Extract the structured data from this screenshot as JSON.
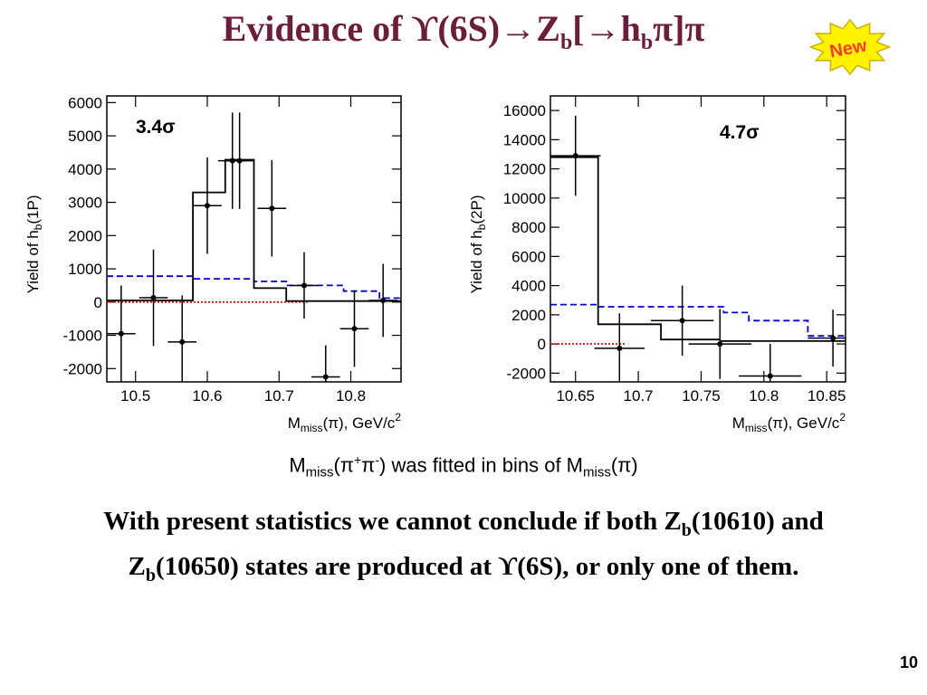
{
  "title": {
    "prefix": "Evidence of ϒ(6S)→Z",
    "sub1": "b",
    "mid": "[→h",
    "sub2": "b",
    "suffix": "π]π"
  },
  "badge": {
    "label": "New",
    "fill": "#fff200",
    "stroke": "#c8b400",
    "text_color": "#ff3b2f"
  },
  "colors": {
    "title": "#6b1e3c",
    "fit": "#000000",
    "background": "#0000cc",
    "zero": "#dd0000"
  },
  "chart_data": [
    {
      "type": "histogram",
      "significance": "3.4σ",
      "ylabel_text": "Yield of h",
      "ylabel_sub": "b",
      "ylabel_suffix": "(1P)",
      "xlabel_prefix": "M",
      "xlabel_sub": "miss",
      "xlabel_suffix": "(π), GeV/c",
      "xlabel_sup": "2",
      "xlim": [
        10.46,
        10.87
      ],
      "ylim": [
        -2400,
        6200
      ],
      "xticks": [
        10.5,
        10.6,
        10.7,
        10.8
      ],
      "xtick_labels": [
        "10.5",
        "10.6",
        "10.7",
        "10.8"
      ],
      "yticks": [
        -2000,
        -1000,
        0,
        1000,
        2000,
        3000,
        4000,
        5000,
        6000
      ],
      "ytick_labels": [
        "-2000",
        "-1000",
        "0",
        "1000",
        "2000",
        "3000",
        "4000",
        "5000",
        "6000"
      ],
      "points": [
        {
          "x": 10.48,
          "xerr": 0.02,
          "y": -950,
          "yerr": 1450
        },
        {
          "x": 10.525,
          "xerr": 0.02,
          "y": 130,
          "yerr": 1450
        },
        {
          "x": 10.565,
          "xerr": 0.02,
          "y": -1200,
          "yerr": 1400
        },
        {
          "x": 10.6,
          "xerr": 0.02,
          "y": 2900,
          "yerr": 1450
        },
        {
          "x": 10.635,
          "xerr": 0.02,
          "y": 4250,
          "yerr": 1450
        },
        {
          "x": 10.645,
          "xerr": 0.02,
          "y": 4250,
          "yerr": 1450
        },
        {
          "x": 10.69,
          "xerr": 0.02,
          "y": 2820,
          "yerr": 1450
        },
        {
          "x": 10.735,
          "xerr": 0.02,
          "y": 500,
          "yerr": 1000
        },
        {
          "x": 10.765,
          "xerr": 0.02,
          "y": -2250,
          "yerr": 950
        },
        {
          "x": 10.805,
          "xerr": 0.02,
          "y": -800,
          "yerr": 1150
        },
        {
          "x": 10.845,
          "xerr": 0.02,
          "y": 50,
          "yerr": 1100
        }
      ],
      "fit_steps": [
        {
          "x0": 10.46,
          "x1": 10.58,
          "y": 50
        },
        {
          "x0": 10.58,
          "x1": 10.625,
          "y": 3300
        },
        {
          "x0": 10.625,
          "x1": 10.665,
          "y": 4280
        },
        {
          "x0": 10.665,
          "x1": 10.71,
          "y": 420
        },
        {
          "x0": 10.71,
          "x1": 10.87,
          "y": 30
        }
      ],
      "background_steps": [
        {
          "x0": 10.46,
          "x1": 10.58,
          "y": 780
        },
        {
          "x0": 10.58,
          "x1": 10.665,
          "y": 700
        },
        {
          "x0": 10.665,
          "x1": 10.71,
          "y": 620
        },
        {
          "x0": 10.71,
          "x1": 10.79,
          "y": 500
        },
        {
          "x0": 10.79,
          "x1": 10.84,
          "y": 330
        },
        {
          "x0": 10.84,
          "x1": 10.87,
          "y": 120
        }
      ],
      "zero_line": {
        "x0": 10.46,
        "x1": 10.74
      }
    },
    {
      "type": "histogram",
      "significance": "4.7σ",
      "ylabel_text": "Yield of h",
      "ylabel_sub": "b",
      "ylabel_suffix": "(2P)",
      "xlabel_prefix": "M",
      "xlabel_sub": "miss",
      "xlabel_suffix": "(π), GeV/c",
      "xlabel_sup": "2",
      "xlim": [
        10.63,
        10.865
      ],
      "ylim": [
        -2600,
        17000
      ],
      "xticks": [
        10.65,
        10.7,
        10.75,
        10.8,
        10.85
      ],
      "xtick_labels": [
        "10.65",
        "10.7",
        "10.75",
        "10.8",
        "10.85"
      ],
      "yticks": [
        -2000,
        0,
        2000,
        4000,
        6000,
        8000,
        10000,
        12000,
        14000,
        16000
      ],
      "ytick_labels": [
        "-2000",
        "0",
        "2000",
        "4000",
        "6000",
        "8000",
        "10000",
        "12000",
        "14000",
        "16000"
      ],
      "points": [
        {
          "x": 10.65,
          "xerr": 0.02,
          "y": 12900,
          "yerr": 2750
        },
        {
          "x": 10.685,
          "xerr": 0.02,
          "y": -300,
          "yerr": 2400
        },
        {
          "x": 10.735,
          "xerr": 0.025,
          "y": 1600,
          "yerr": 2400
        },
        {
          "x": 10.765,
          "xerr": 0.025,
          "y": 0,
          "yerr": 2400
        },
        {
          "x": 10.805,
          "xerr": 0.025,
          "y": -2200,
          "yerr": 2200
        },
        {
          "x": 10.855,
          "xerr": 0.02,
          "y": 400,
          "yerr": 1950
        }
      ],
      "fit_steps": [
        {
          "x0": 10.63,
          "x1": 10.668,
          "y": 12800
        },
        {
          "x0": 10.668,
          "x1": 10.718,
          "y": 1350
        },
        {
          "x0": 10.718,
          "x1": 10.765,
          "y": 300
        },
        {
          "x0": 10.765,
          "x1": 10.865,
          "y": 200
        }
      ],
      "background_steps": [
        {
          "x0": 10.63,
          "x1": 10.668,
          "y": 2700
        },
        {
          "x0": 10.668,
          "x1": 10.768,
          "y": 2550
        },
        {
          "x0": 10.768,
          "x1": 10.788,
          "y": 2150
        },
        {
          "x0": 10.788,
          "x1": 10.835,
          "y": 1600
        },
        {
          "x0": 10.835,
          "x1": 10.865,
          "y": 550
        }
      ],
      "zero_line": {
        "x0": 10.63,
        "x1": 10.69
      }
    }
  ],
  "caption": {
    "m1": "M",
    "sub1": "miss",
    "p1": "(π",
    "sup1": "+",
    "p2": "π",
    "sup2": "-",
    "p3": ") was fitted in bins of M",
    "sub2": "miss",
    "p4": "(π)"
  },
  "conclusion": {
    "line1_a": "With present statistics we cannot conclude if both Z",
    "line1_sub": "b",
    "line1_b": "(10610) and",
    "line2_a": "Z",
    "line2_sub": "b",
    "line2_b": "(10650) states are produced at ϒ(6S), or only one of them."
  },
  "page_number": "10"
}
